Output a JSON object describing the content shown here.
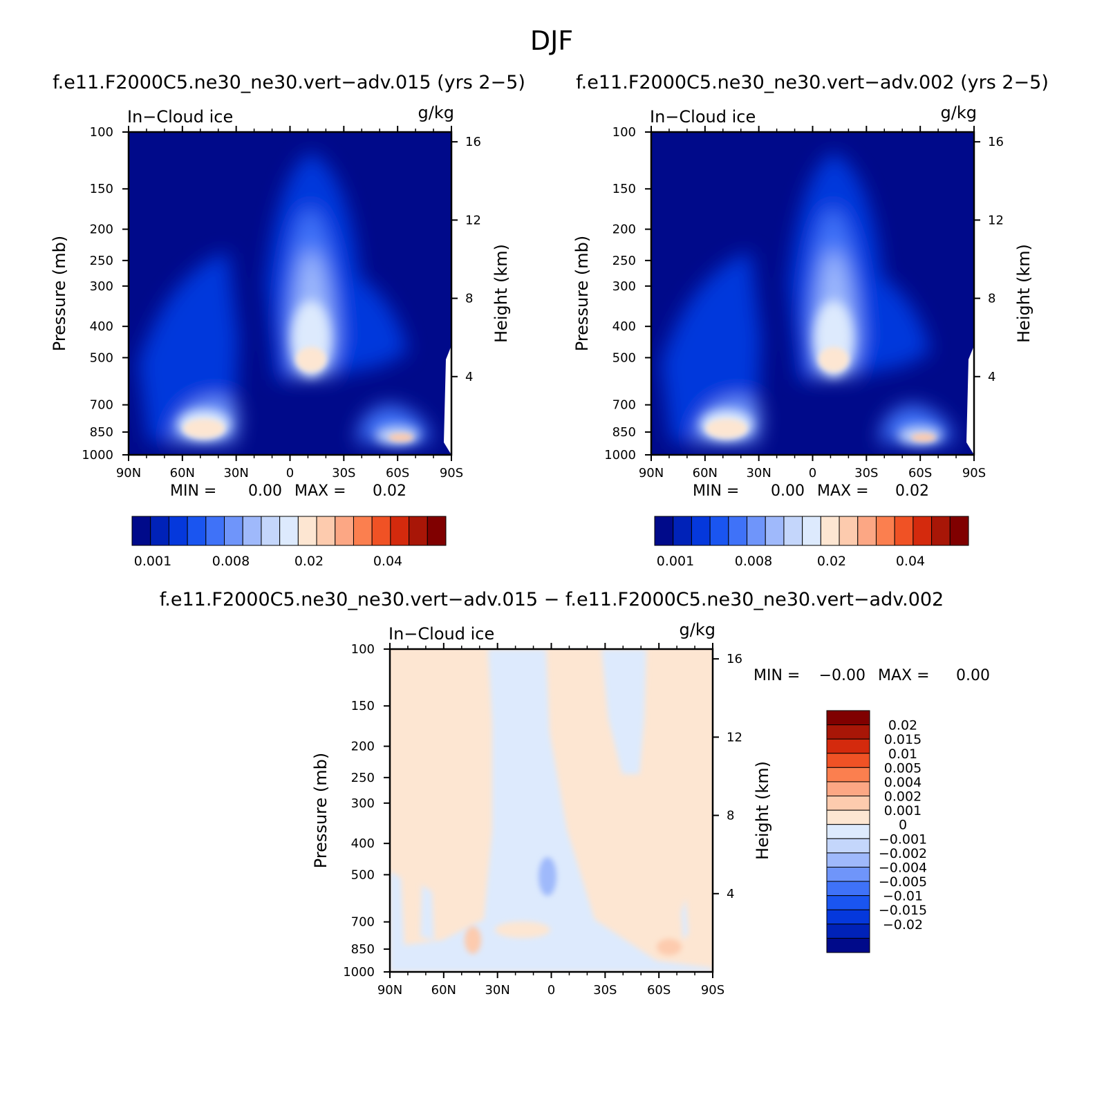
{
  "figure": {
    "title": "DJF",
    "diff_title": "f.e11.F2000C5.ne30_ne30.vert−adv.015 − f.e11.F2000C5.ne30_ne30.vert−adv.002"
  },
  "chart_data": [
    {
      "type": "heatmap",
      "title": "f.e11.F2000C5.ne30_ne30.vert−adv.015 (yrs 2−5)",
      "left_label": "In−Cloud ice",
      "right_label": "g/kg",
      "xlabel": "",
      "ylabel": "Pressure (mb)",
      "y2label": "Height (km)",
      "x_ticks": [
        "90N",
        "60N",
        "30N",
        "0",
        "30S",
        "60S",
        "90S"
      ],
      "y_ticks": [
        100,
        150,
        200,
        250,
        300,
        400,
        500,
        700,
        850,
        1000
      ],
      "y2_ticks": [
        16,
        12,
        8,
        4
      ],
      "ylim": [
        1000,
        100
      ],
      "y_scale": "log",
      "min_label": "MIN =",
      "min_value": "0.00",
      "max_label": "MAX =",
      "max_value": "0.02",
      "colorbar_labels": [
        "0.001",
        "0.008",
        "0.02",
        "0.04"
      ],
      "features": [
        {
          "lat": 10,
          "p": 500,
          "value": 0.02
        },
        {
          "lat": 60,
          "p": 830,
          "value": 0.02
        },
        {
          "lat": 42,
          "p": 800,
          "value": 0.015
        },
        {
          "lat": -52,
          "p": 500,
          "value": 0.002
        }
      ]
    },
    {
      "type": "heatmap",
      "title": "f.e11.F2000C5.ne30_ne30.vert−adv.002 (yrs 2−5)",
      "left_label": "In−Cloud ice",
      "right_label": "g/kg",
      "xlabel": "",
      "ylabel": "Pressure (mb)",
      "y2label": "Height (km)",
      "x_ticks": [
        "90N",
        "60N",
        "30N",
        "0",
        "30S",
        "60S",
        "90S"
      ],
      "y_ticks": [
        100,
        150,
        200,
        250,
        300,
        400,
        500,
        700,
        850,
        1000
      ],
      "y2_ticks": [
        16,
        12,
        8,
        4
      ],
      "ylim": [
        1000,
        100
      ],
      "y_scale": "log",
      "min_label": "MIN =",
      "min_value": "0.00",
      "max_label": "MAX =",
      "max_value": "0.02",
      "colorbar_labels": [
        "0.001",
        "0.008",
        "0.02",
        "0.04"
      ],
      "features": [
        {
          "lat": 10,
          "p": 500,
          "value": 0.02
        },
        {
          "lat": 60,
          "p": 830,
          "value": 0.02
        },
        {
          "lat": 42,
          "p": 800,
          "value": 0.015
        },
        {
          "lat": -52,
          "p": 500,
          "value": 0.002
        }
      ]
    },
    {
      "type": "heatmap",
      "title": "",
      "left_label": "In−Cloud ice",
      "right_label": "g/kg",
      "xlabel": "",
      "ylabel": "Pressure (mb)",
      "y2label": "Height (km)",
      "x_ticks": [
        "90N",
        "60N",
        "30N",
        "0",
        "30S",
        "60S",
        "90S"
      ],
      "y_ticks": [
        100,
        150,
        200,
        250,
        300,
        400,
        500,
        700,
        850,
        1000
      ],
      "y2_ticks": [
        16,
        12,
        8,
        4
      ],
      "ylim": [
        1000,
        100
      ],
      "y_scale": "log",
      "min_label": "MIN =",
      "min_value": "−0.00",
      "max_label": "MAX =",
      "max_value": "0.00",
      "colorbar_labels": [
        "0.02",
        "0.015",
        "0.01",
        "0.005",
        "0.004",
        "0.002",
        "0.001",
        "0",
        "−0.001",
        "−0.002",
        "−0.004",
        "−0.005",
        "−0.01",
        "−0.015",
        "−0.02"
      ]
    }
  ],
  "colors": {
    "seq": [
      "#000a8a",
      "#0022b8",
      "#0538dc",
      "#1a55f0",
      "#3f72f8",
      "#6f95fa",
      "#9fb9fb",
      "#c4d6fb",
      "#ddeafd",
      "#fde6d2",
      "#fdcbae",
      "#fca784",
      "#fb7f4f",
      "#f05225",
      "#d42a0d",
      "#a81607",
      "#800000"
    ],
    "div": [
      "#800000",
      "#a81607",
      "#d42a0d",
      "#f05225",
      "#fb7f4f",
      "#fca784",
      "#fdcbae",
      "#fde6d2",
      "#ddeafd",
      "#c4d6fb",
      "#9fb9fb",
      "#6f95fa",
      "#3f72f8",
      "#1a55f0",
      "#0538dc",
      "#0022b8",
      "#000a8a"
    ]
  }
}
